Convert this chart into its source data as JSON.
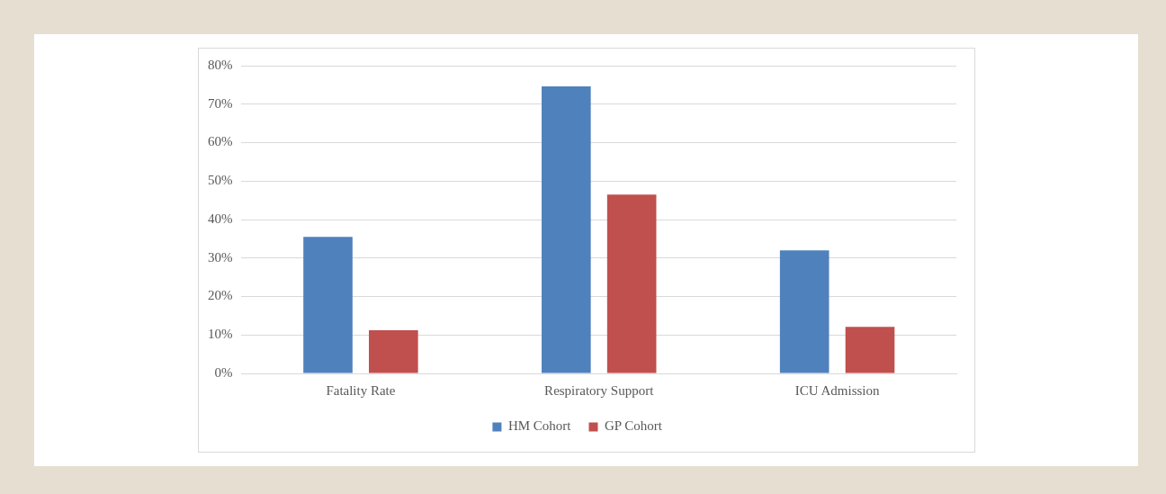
{
  "chart_data": {
    "type": "bar",
    "categories": [
      "Fatality Rate",
      "Respiratory Support",
      "ICU Admission"
    ],
    "series": [
      {
        "name": "HM Cohort",
        "color": "#4f81bd",
        "values": [
          35.5,
          74.6,
          32
        ]
      },
      {
        "name": "GP Cohort",
        "color": "#c0504d",
        "values": [
          11.2,
          46.5,
          12.1
        ]
      }
    ],
    "ylim": [
      0,
      80
    ],
    "yticks": [
      {
        "value": 0,
        "label": "0%"
      },
      {
        "value": 10,
        "label": "10%"
      },
      {
        "value": 20,
        "label": "20%"
      },
      {
        "value": 30,
        "label": "30%"
      },
      {
        "value": 40,
        "label": "40%"
      },
      {
        "value": 50,
        "label": "50%"
      },
      {
        "value": 60,
        "label": "60%"
      },
      {
        "value": 70,
        "label": "70%"
      },
      {
        "value": 80,
        "label": "80%"
      }
    ],
    "grid": "y",
    "legend": "bottom"
  }
}
